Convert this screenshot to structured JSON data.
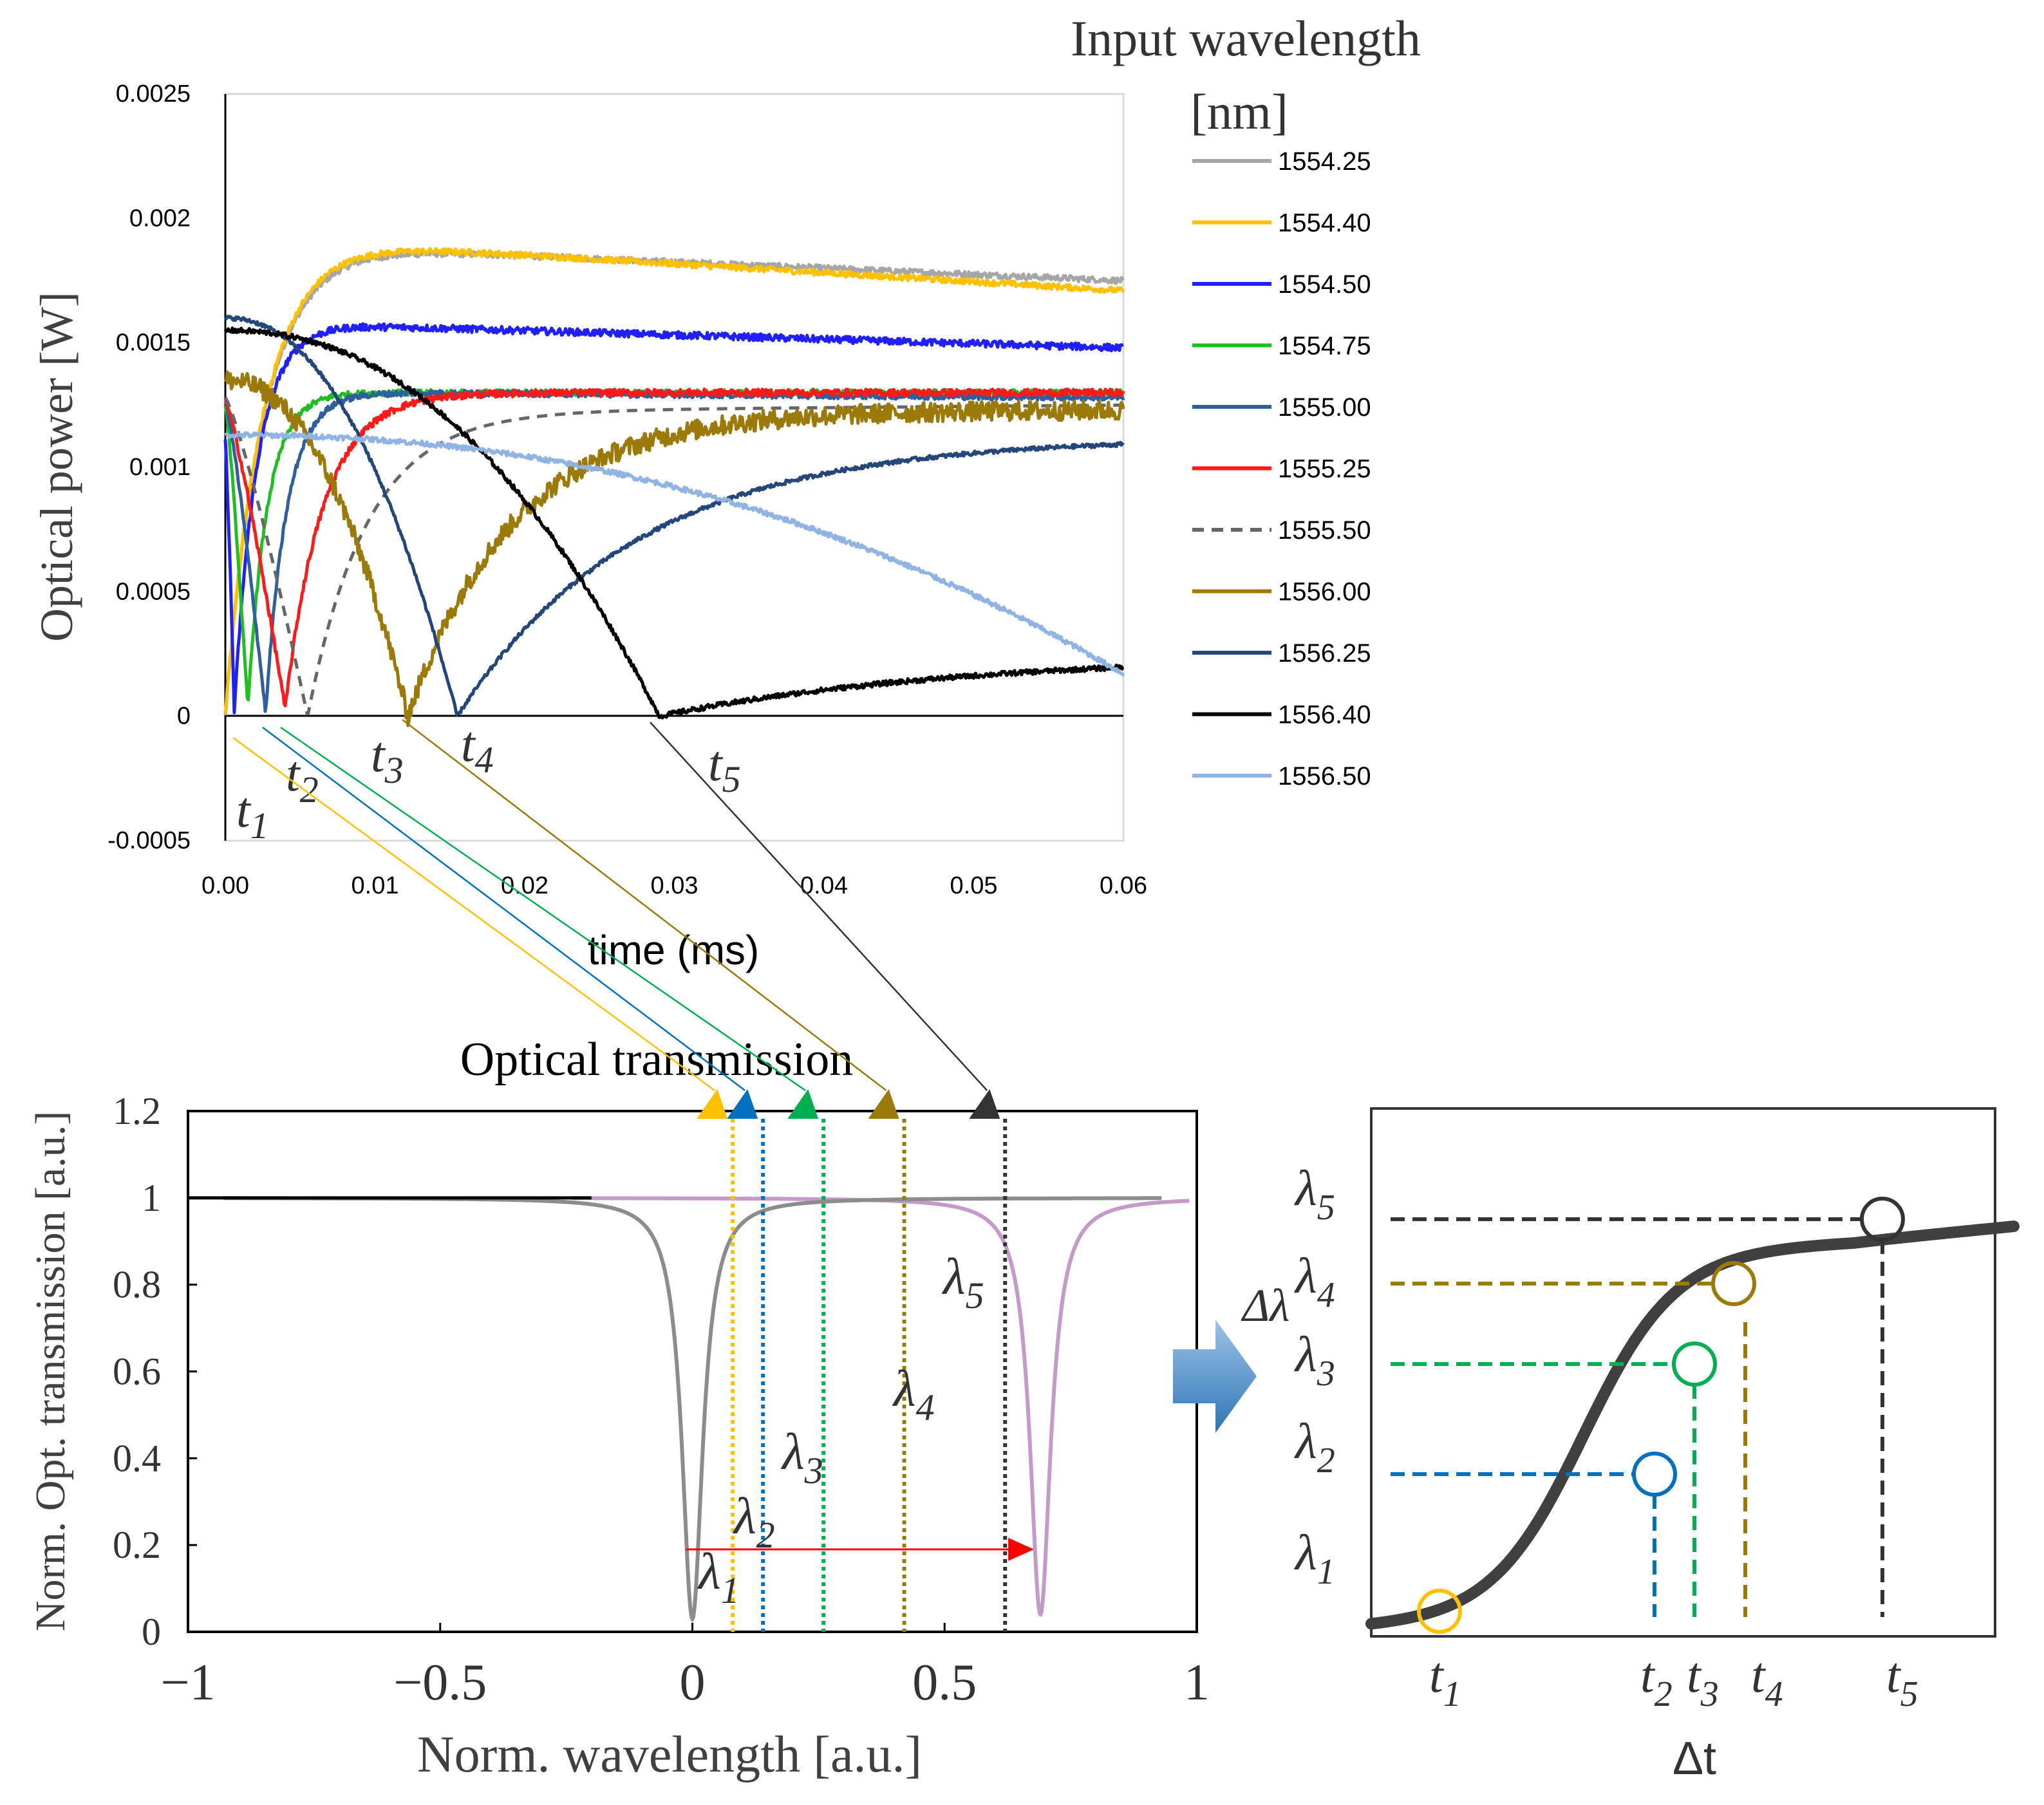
{
  "colors": {
    "axis": "#000000",
    "c1554_25": "#a6a6a6",
    "c1554_40": "#ffc000",
    "c1554_50": "#1f1fff",
    "c1554_75": "#1fbf1f",
    "c1555_00": "#2e5f9e",
    "c1555_25": "#ff1a1a",
    "c1555_50": "#666666",
    "c1556_00": "#9c7a0a",
    "c1556_25": "#23477a",
    "c1556_40": "#000000",
    "c1556_50": "#8fb4e3",
    "gray_dip": "#8c8c8c",
    "purple_dip": "#c49ac9",
    "red_arrow": "#ff0000",
    "yellow": "#ffc000",
    "blue": "#0070c0",
    "green": "#00b050",
    "brown": "#9c7a0a",
    "dark": "#333333",
    "big_arrow_top": "#9dc3e6",
    "big_arrow_bottom": "#2e75b6"
  },
  "chart_data": [
    {
      "type": "line",
      "id": "time_trace",
      "xlabel": "time (ms)",
      "ylabel": "Optical power [W]",
      "xlim": [
        0,
        0.06
      ],
      "ylim": [
        -0.0005,
        0.0025
      ],
      "x_ticks": [
        "0.00",
        "0.01",
        "0.02",
        "0.03",
        "0.04",
        "0.05",
        "0.06"
      ],
      "y_ticks": [
        "-0.0005",
        "0",
        "0.0005",
        "0.001",
        "0.0015",
        "0.002",
        "0.0025"
      ],
      "legend_title_line1": "Input wavelength",
      "legend_title_line2": "[nm]",
      "legend_placement": "right",
      "series": [
        {
          "name": "1554.25",
          "color_key": "c1554_25",
          "dash": false,
          "start": 0.00035,
          "dip_t": 0.0,
          "dip_val": 0.0,
          "rise_tau": 0.0025,
          "peak": 0.00188,
          "peak_t": 0.008,
          "end": 0.00175,
          "noise": 1.2e-05
        },
        {
          "name": "1554.40",
          "color_key": "c1554_40",
          "dash": false,
          "start": 0.00035,
          "dip_t": 0.0,
          "dip_val": 0.0,
          "rise_tau": 0.0025,
          "peak": 0.0019,
          "peak_t": 0.007,
          "end": 0.00171,
          "noise": 1.2e-05
        },
        {
          "name": "1554.50",
          "color_key": "c1554_50",
          "dash": false,
          "start": 0.0011,
          "dip_t": 0.0006,
          "dip_val": 2e-05,
          "rise_tau": 0.0015,
          "peak": 0.00157,
          "peak_t": 0.008,
          "end": 0.00148,
          "noise": 1.4e-05
        },
        {
          "name": "1554.75",
          "color_key": "c1554_75",
          "dash": false,
          "start": 0.00126,
          "dip_t": 0.0015,
          "dip_val": 3e-05,
          "rise_tau": 0.0013,
          "peak": 0.0013,
          "peak_t": 0.009,
          "end": 0.0013,
          "noise": 1.2e-05
        },
        {
          "name": "1555.00",
          "color_key": "c1555_00",
          "dash": false,
          "start": 0.00127,
          "dip_t": 0.0027,
          "dip_val": 1e-05,
          "rise_tau": 0.0014,
          "peak": 0.0013,
          "peak_t": 0.01,
          "end": 0.00128,
          "noise": 1.2e-05
        },
        {
          "name": "1555.25",
          "color_key": "c1555_25",
          "dash": false,
          "start": 0.00127,
          "dip_t": 0.004,
          "dip_val": 3e-05,
          "rise_tau": 0.0025,
          "peak": 0.0013,
          "peak_t": 0.012,
          "end": 0.0013,
          "noise": 1.4e-05
        },
        {
          "name": "1555.50",
          "color_key": "c1555_50",
          "dash": true,
          "start": 0.00128,
          "dip_t": 0.0055,
          "dip_val": 0.0,
          "rise_tau": 0.004,
          "peak": 0.00123,
          "peak_t": 0.02,
          "end": 0.00125,
          "noise": 0.0
        },
        {
          "name": "1556.00",
          "color_key": "c1556_00",
          "dash": false,
          "start": 0.00135,
          "dip_t": 0.0122,
          "dip_val": 0.0,
          "rise_tau": 0.007,
          "peak": 0.00123,
          "peak_t": 0.04,
          "end": 0.00123,
          "noise": 4e-05
        },
        {
          "name": "1556.25",
          "color_key": "c1556_25",
          "dash": false,
          "start": 0.0016,
          "dip_t": 0.0155,
          "dip_val": 0.0,
          "rise_tau": 0.012,
          "peak": 0.00112,
          "peak_t": 0.06,
          "end": 0.00112,
          "noise": 8e-06
        },
        {
          "name": "1556.40",
          "color_key": "c1556_40",
          "dash": false,
          "start": 0.00155,
          "dip_t": 0.029,
          "dip_val": 0.0,
          "rise_tau": 0.02,
          "peak": 0.00025,
          "peak_t": 0.06,
          "end": 0.00025,
          "noise": 1e-05
        },
        {
          "name": "1556.50",
          "color_key": "c1556_50",
          "dash": false,
          "start": 0.00113,
          "dip_t": 0.06,
          "dip_val": 0.00017,
          "rise_tau": 0.01,
          "peak": 0.00017,
          "peak_t": 0.06,
          "end": 0.00017,
          "noise": 1e-05
        }
      ],
      "annotations": [
        "t",
        "1",
        "t",
        "2",
        "t",
        "3",
        "t",
        "4",
        "t",
        "5"
      ]
    },
    {
      "type": "line",
      "id": "transmission",
      "title": "Optical transmission",
      "xlabel": "Norm. wavelength [a.u.]",
      "ylabel": "Norm. Opt. transmission [a.u.]",
      "xlim": [
        -1,
        1
      ],
      "ylim": [
        0,
        1.2
      ],
      "x_ticks": [
        "−1",
        "−0.5",
        "0",
        "0.5",
        "1"
      ],
      "y_ticks": [
        "0",
        "0.2",
        "0.4",
        "0.6",
        "0.8",
        "1",
        "1.2"
      ],
      "series": [
        {
          "name": "resonance_initial",
          "color_key": "gray_dip",
          "center": 0.0,
          "min": 0.03,
          "width": 0.025
        },
        {
          "name": "resonance_shifted",
          "color_key": "purple_dip",
          "center": 0.69,
          "min": 0.04,
          "width": 0.025
        }
      ],
      "markers": [
        {
          "label": "λ",
          "sub": "1",
          "x": 0.08,
          "color_key": "yellow"
        },
        {
          "label": "λ",
          "sub": "2",
          "x": 0.14,
          "color_key": "blue"
        },
        {
          "label": "λ",
          "sub": "3",
          "x": 0.26,
          "color_key": "green"
        },
        {
          "label": "λ",
          "sub": "4",
          "x": 0.42,
          "color_key": "brown"
        },
        {
          "label": "λ",
          "sub": "5",
          "x": 0.62,
          "color_key": "dark"
        }
      ],
      "shift_arrow": {
        "from": 0.0,
        "to": 0.69,
        "y": 0.19
      }
    },
    {
      "type": "line",
      "id": "wavelength_vs_time",
      "xlabel": "Δt",
      "ylabel": "Δλ",
      "points": [
        {
          "label_t": "1",
          "label_l": "1",
          "color_key": "yellow"
        },
        {
          "label_t": "2",
          "label_l": "2",
          "color_key": "blue"
        },
        {
          "label_t": "3",
          "label_l": "3",
          "color_key": "green"
        },
        {
          "label_t": "4",
          "label_l": "4",
          "color_key": "brown"
        },
        {
          "label_t": "5",
          "label_l": "5",
          "color_key": "dark"
        }
      ]
    }
  ]
}
